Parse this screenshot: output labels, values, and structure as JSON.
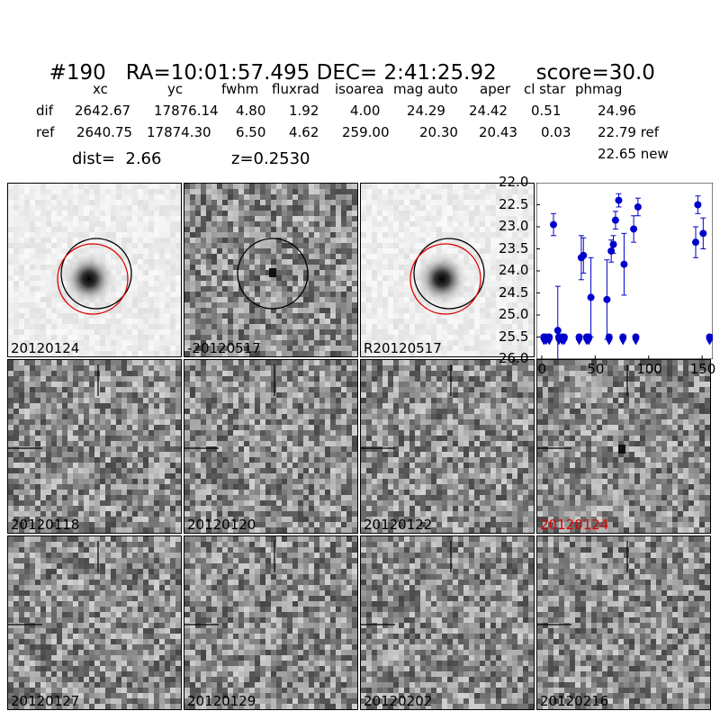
{
  "header": {
    "id": "#190",
    "ra": "RA=10:01:57.495",
    "dec": "DEC= 2:41:25.92",
    "score": "score=30.0"
  },
  "table": {
    "columns": [
      "xc",
      "yc",
      "fwhm",
      "fluxrad",
      "isoarea",
      "mag auto",
      "aper",
      "cl star",
      "phmag"
    ],
    "rows": [
      {
        "label": "dif",
        "values": [
          "2642.67",
          "17876.14",
          "4.80",
          "1.92",
          "4.00",
          "24.29",
          "24.42",
          "0.51",
          "24.96"
        ]
      },
      {
        "label": "ref",
        "values": [
          "2640.75",
          "17874.30",
          "6.50",
          "4.62",
          "259.00",
          "20.30",
          "20.43",
          "0.03",
          "22.79 ref"
        ]
      }
    ],
    "extra_phmag": "22.65 new",
    "dist": "dist=  2.66",
    "z": "z=0.2530"
  },
  "panels": [
    {
      "label": "20120124",
      "type": "ref"
    },
    {
      "label": "-20120517",
      "type": "diff"
    },
    {
      "label": "R20120517",
      "type": "ref"
    },
    {
      "label": "20120118",
      "type": "noise"
    },
    {
      "label": "20120120",
      "type": "noise"
    },
    {
      "label": "20120122",
      "type": "noise"
    },
    {
      "label": "20120124",
      "type": "noise",
      "highlight": true
    },
    {
      "label": "20120127",
      "type": "noise"
    },
    {
      "label": "20120129",
      "type": "noise"
    },
    {
      "label": "20120202",
      "type": "noise"
    },
    {
      "label": "20120216",
      "type": "noise"
    }
  ],
  "chart_data": {
    "type": "scatter",
    "xlim": [
      -5,
      160
    ],
    "ylim": [
      26.0,
      22.0
    ],
    "inverted_y": true,
    "xticks": [
      "0",
      "50",
      "100",
      "150"
    ],
    "yticks": [
      "22.0",
      "22.5",
      "23.0",
      "23.5",
      "24.0",
      "24.5",
      "25.0",
      "25.5",
      "26.0"
    ],
    "color": "#0000cc",
    "detections": [
      {
        "x": 11,
        "y": 22.95,
        "err": 0.25
      },
      {
        "x": 15,
        "y": 25.35,
        "err": 1.0
      },
      {
        "x": 37,
        "y": 23.7,
        "err": 0.5
      },
      {
        "x": 39,
        "y": 23.65,
        "err": 0.4
      },
      {
        "x": 46,
        "y": 24.6,
        "err": 0.9
      },
      {
        "x": 61,
        "y": 24.65,
        "err": 0.9
      },
      {
        "x": 65,
        "y": 23.55,
        "err": 0.25
      },
      {
        "x": 67,
        "y": 23.4,
        "err": 0.2
      },
      {
        "x": 69,
        "y": 22.85,
        "err": 0.2
      },
      {
        "x": 72,
        "y": 22.4,
        "err": 0.15
      },
      {
        "x": 77,
        "y": 23.85,
        "err": 0.7
      },
      {
        "x": 86,
        "y": 23.05,
        "err": 0.3
      },
      {
        "x": 90,
        "y": 22.55,
        "err": 0.2
      },
      {
        "x": 144,
        "y": 23.35,
        "err": 0.35
      },
      {
        "x": 146,
        "y": 22.5,
        "err": 0.2
      },
      {
        "x": 151,
        "y": 23.15,
        "err": 0.35
      }
    ],
    "limits": [
      {
        "x": 2,
        "y": 25.5
      },
      {
        "x": 4,
        "y": 25.5
      },
      {
        "x": 7,
        "y": 25.5
      },
      {
        "x": 16,
        "y": 25.5
      },
      {
        "x": 19,
        "y": 25.5
      },
      {
        "x": 21,
        "y": 25.5
      },
      {
        "x": 35,
        "y": 25.5
      },
      {
        "x": 42,
        "y": 25.5
      },
      {
        "x": 44,
        "y": 25.5
      },
      {
        "x": 63,
        "y": 25.5
      },
      {
        "x": 76,
        "y": 25.5
      },
      {
        "x": 88,
        "y": 25.5
      },
      {
        "x": 157,
        "y": 25.5
      }
    ]
  }
}
